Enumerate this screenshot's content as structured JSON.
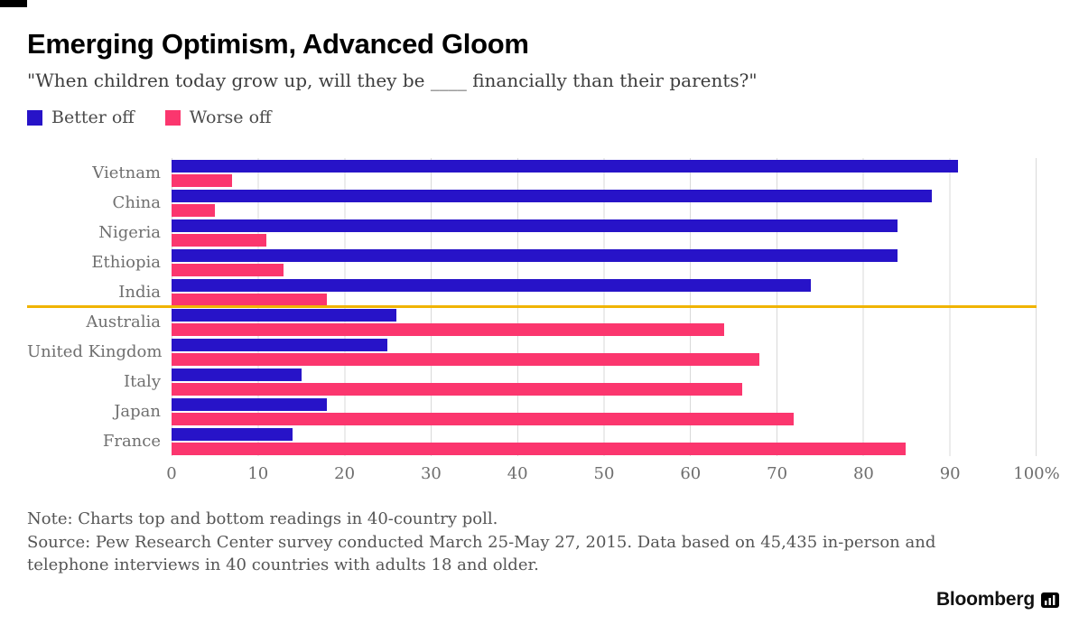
{
  "header": {
    "title": "Emerging Optimism, Advanced Gloom",
    "subtitle": "\"When children today grow up, will they be ____ financially than their parents?\""
  },
  "legend": [
    {
      "label": "Better off",
      "color": "#2713c8"
    },
    {
      "label": "Worse off",
      "color": "#fb366e"
    }
  ],
  "chart_data": {
    "type": "bar",
    "orientation": "horizontal",
    "title": "Emerging Optimism, Advanced Gloom",
    "subtitle": "\"When children today grow up, will they be ____ financially than their parents?\"",
    "categories": [
      "Vietnam",
      "China",
      "Nigeria",
      "Ethiopia",
      "India",
      "Australia",
      "United Kingdom",
      "Italy",
      "Japan",
      "France"
    ],
    "series": [
      {
        "name": "Better off",
        "color": "#2713c8",
        "values": [
          91,
          88,
          84,
          84,
          74,
          26,
          25,
          15,
          18,
          14
        ]
      },
      {
        "name": "Worse off",
        "color": "#fb366e",
        "values": [
          7,
          5,
          11,
          13,
          18,
          64,
          68,
          66,
          72,
          85
        ]
      }
    ],
    "xlim": [
      0,
      100
    ],
    "x_ticks": [
      "0",
      "10",
      "20",
      "30",
      "40",
      "50",
      "60",
      "70",
      "80",
      "90",
      "100%"
    ],
    "grid": true,
    "legend_position": "top-left",
    "divider_after_category": "India",
    "divider_color": "#f0b400"
  },
  "notes": {
    "note": "Note: Charts top and bottom readings in 40-country poll.",
    "source": "Source: Pew Research Center survey conducted March 25-May 27, 2015. Data based on 45,435 in-person and telephone interviews in 40 countries with adults 18 and older."
  },
  "branding": {
    "logo_text": "Bloomberg",
    "logo_icon": "bar-chart-icon"
  }
}
